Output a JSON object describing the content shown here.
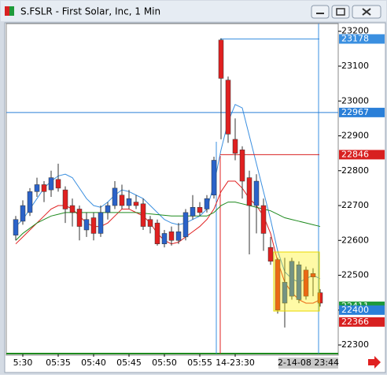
{
  "chart_data": {
    "type": "candlestick",
    "title": "S.FSLR - First Solar, Inc, 1 Min",
    "categories": [
      null,
      "5:30",
      null,
      null,
      null,
      null,
      "05:35",
      null,
      null,
      null,
      null,
      "05:40",
      null,
      null,
      null,
      null,
      "05:45",
      null,
      null,
      null,
      null,
      "05:50",
      null,
      null,
      null,
      null,
      "05:55",
      null,
      null,
      null,
      null,
      "14-23:30",
      null,
      null,
      null,
      null,
      null,
      null,
      null,
      null,
      null,
      null,
      null,
      null
    ],
    "open": [
      22615,
      22655,
      22680,
      22740,
      22760,
      22745,
      22775,
      22745,
      22700,
      22690,
      22630,
      22665,
      22620,
      22680,
      22700,
      22730,
      22700,
      22710,
      22705,
      22660,
      22650,
      22590,
      22625,
      22600,
      22610,
      22670,
      22695,
      22690,
      22730,
      23175,
      23060,
      22890,
      22860,
      22780,
      22700,
      22700,
      22580,
      22545,
      22420,
      22440,
      22430,
      22515,
      22505,
      22450
    ],
    "high": [
      22670,
      22715,
      22750,
      22780,
      22770,
      22800,
      22820,
      22755,
      22720,
      22700,
      22680,
      22680,
      22700,
      22710,
      22770,
      22760,
      22745,
      22730,
      22720,
      22670,
      22660,
      22630,
      22640,
      22650,
      22690,
      22730,
      22710,
      22730,
      22840,
      23180,
      23070,
      22950,
      22870,
      22800,
      22790,
      22720,
      22610,
      22550,
      22550,
      22550,
      22540,
      22525,
      22520,
      22460
    ],
    "low": [
      22600,
      22645,
      22670,
      22725,
      22710,
      22725,
      22740,
      22650,
      22640,
      22600,
      22610,
      22600,
      22610,
      22660,
      22690,
      22690,
      22690,
      22690,
      22630,
      22620,
      22585,
      22580,
      22585,
      22590,
      22600,
      22660,
      22670,
      22680,
      22720,
      22890,
      22880,
      22830,
      22720,
      22560,
      22620,
      22570,
      22530,
      22390,
      22350,
      22430,
      22420,
      22430,
      22440,
      22410
    ],
    "close": [
      22660,
      22700,
      22740,
      22760,
      22740,
      22780,
      22750,
      22690,
      22680,
      22640,
      22660,
      22620,
      22680,
      22700,
      22750,
      22700,
      22720,
      22700,
      22640,
      22640,
      22590,
      22620,
      22600,
      22625,
      22680,
      22695,
      22680,
      22720,
      22830,
      23065,
      22905,
      22850,
      22770,
      22700,
      22770,
      22620,
      22540,
      22400,
      22480,
      22540,
      22530,
      22440,
      22495,
      22420
    ],
    "up_color": "#2a62c9",
    "down_color": "#e02020",
    "series": [
      {
        "color": "#3a8fe0",
        "values": [
          22640,
          22660,
          22690,
          22720,
          22750,
          22770,
          22785,
          22790,
          22780,
          22750,
          22720,
          22700,
          22695,
          22710,
          22730,
          22745,
          22740,
          22730,
          22720,
          22700,
          22680,
          22660,
          22650,
          22645,
          22650,
          22660,
          22670,
          22690,
          22760,
          22860,
          22940,
          22990,
          22980,
          22900,
          22820,
          22740,
          22660,
          22570,
          22510,
          22490,
          22480,
          22490,
          22500,
          22490
        ]
      },
      {
        "color": "#e02020",
        "values": [
          22590,
          22610,
          22630,
          22650,
          22670,
          22690,
          22700,
          22700,
          22690,
          22670,
          22650,
          22640,
          22640,
          22650,
          22670,
          22690,
          22690,
          22680,
          22670,
          22650,
          22620,
          22600,
          22590,
          22595,
          22610,
          22625,
          22640,
          22660,
          22690,
          22740,
          22770,
          22770,
          22750,
          22720,
          22700,
          22670,
          22620,
          22540,
          22480,
          22450,
          22430,
          22420,
          22420,
          22430
        ]
      },
      {
        "color": "#1e8a1e",
        "values": [
          22600,
          22620,
          22635,
          22650,
          22660,
          22670,
          22675,
          22680,
          22680,
          22680,
          22680,
          22680,
          22680,
          22680,
          22680,
          22680,
          22680,
          22680,
          22678,
          22676,
          22674,
          22672,
          22670,
          22670,
          22670,
          22670,
          22670,
          22670,
          22680,
          22700,
          22710,
          22710,
          22705,
          22700,
          22695,
          22690,
          22685,
          22675,
          22665,
          22660,
          22655,
          22650,
          22645,
          22640
        ]
      }
    ],
    "ylim": [
      22273,
      23222
    ],
    "yticks": [
      22300,
      22400,
      22500,
      22600,
      22700,
      22800,
      22900,
      23000,
      23100,
      23200
    ],
    "markers": [
      {
        "value": 23178,
        "color": "#3a8fe0",
        "line": "right"
      },
      {
        "value": 22967,
        "color": "#2a7fd8",
        "line": "full"
      },
      {
        "value": 22846,
        "color": "#d82020",
        "line": "right"
      },
      {
        "value": 22411,
        "color": "#1e9a3a"
      },
      {
        "value": 22400,
        "color": "#2a7fd8"
      },
      {
        "value": 22366,
        "color": "#d82020"
      }
    ],
    "cursor_time": "2-14-08 23:44"
  }
}
